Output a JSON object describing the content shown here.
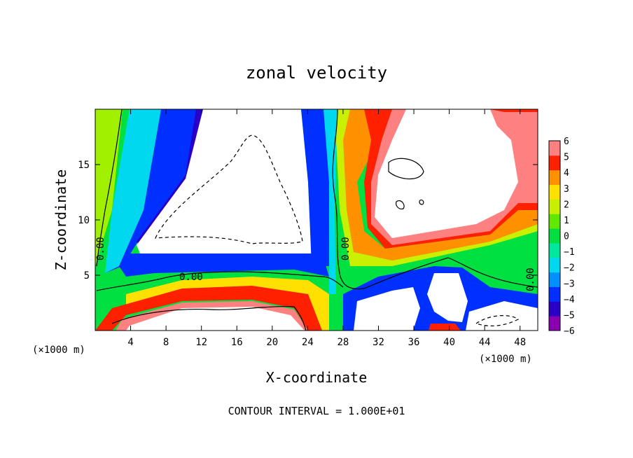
{
  "chart_data": {
    "type": "heatmap",
    "title": "zonal velocity",
    "xlabel": "X-coordinate",
    "ylabel": "Z-coordinate",
    "x_unit": "(×1000 m)",
    "y_unit": "(×1000 m)",
    "xlim": [
      0,
      50
    ],
    "ylim": [
      0,
      20
    ],
    "x_ticks": [
      4,
      8,
      12,
      16,
      20,
      24,
      28,
      32,
      36,
      40,
      44,
      48
    ],
    "y_ticks": [
      5,
      10,
      15
    ],
    "x_tick_labels": [
      "4",
      "8",
      "12",
      "16",
      "20",
      "24",
      "28",
      "32",
      "36",
      "40",
      "44",
      "48"
    ],
    "y_tick_labels": [
      "5",
      "10",
      "15"
    ],
    "colorbar": {
      "min": -6,
      "max": 6,
      "ticks": [
        6,
        5,
        4,
        3,
        2,
        1,
        0,
        -1,
        -2,
        -3,
        -4,
        -5,
        -6
      ],
      "tick_labels": [
        "6",
        "5",
        "4",
        "3",
        "2",
        "1",
        "0",
        "−1",
        "−2",
        "−3",
        "−4",
        "−5",
        "−6"
      ],
      "colors": [
        "#8a00b0",
        "#2a00c8",
        "#0030ff",
        "#0090ff",
        "#00d8f0",
        "#00e8a0",
        "#00e040",
        "#60e800",
        "#c8f000",
        "#ffe000",
        "#ff9000",
        "#ff2000",
        "#ff8080"
      ]
    },
    "contour_labels": [
      "0.00",
      "0.00",
      "0.00",
      "0.00"
    ],
    "footer": "CONTOUR INTERVAL = 1.000E+01"
  }
}
